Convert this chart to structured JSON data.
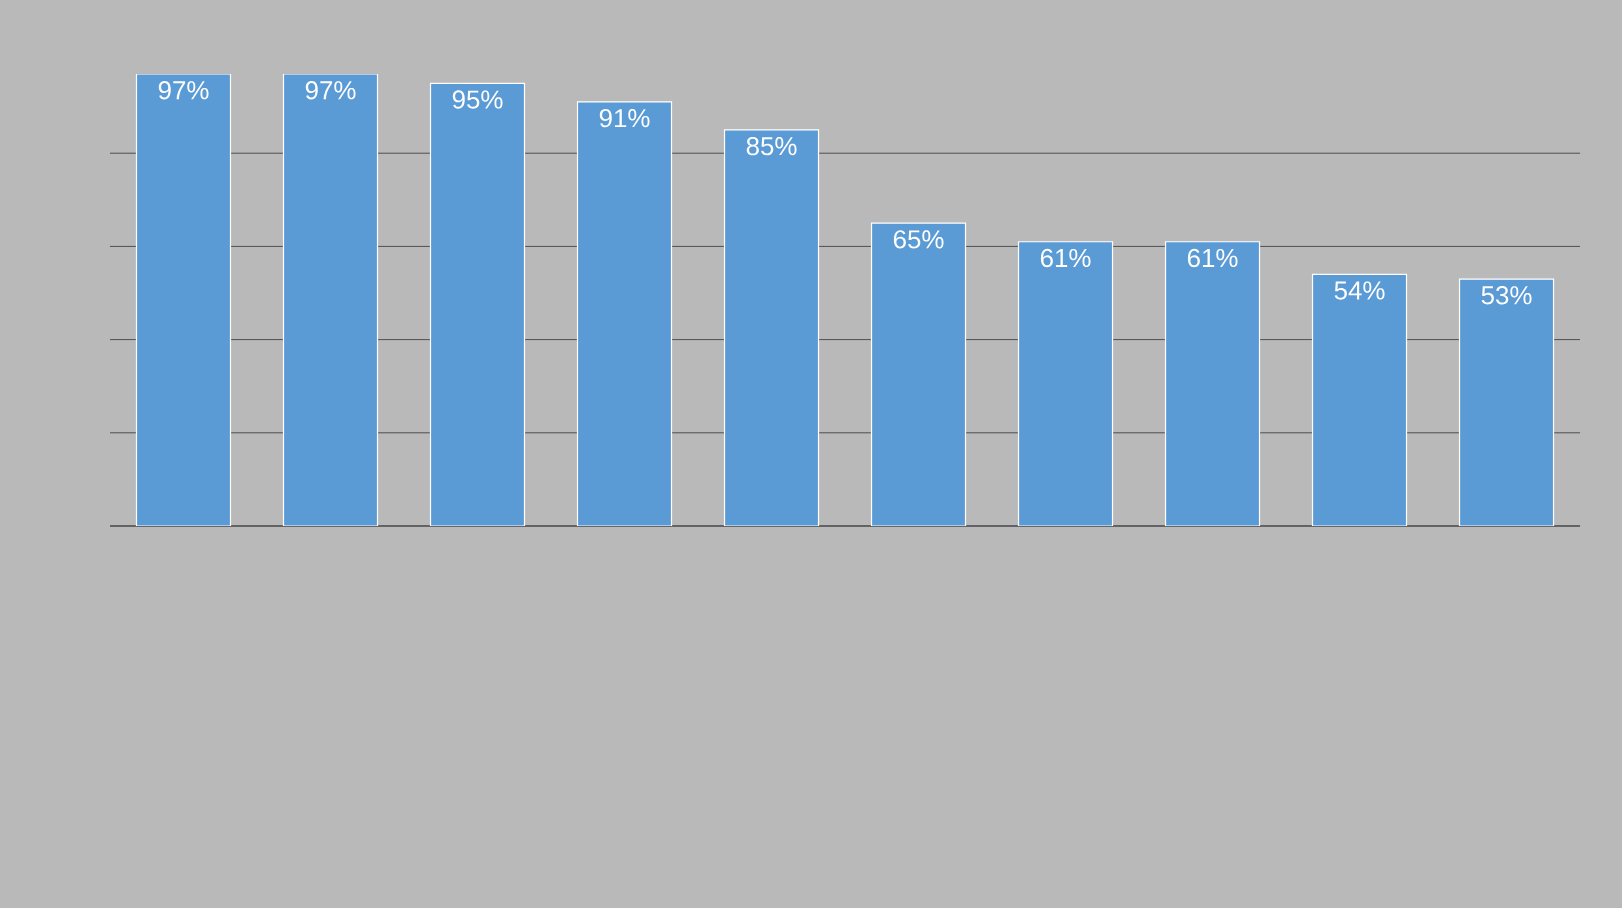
{
  "chart_data": {
    "type": "bar",
    "categories": [
      null,
      null,
      null,
      null,
      null,
      null,
      null,
      null,
      null,
      null
    ],
    "values": [
      97,
      97,
      95,
      91,
      85,
      65,
      61,
      61,
      54,
      53
    ],
    "value_labels": [
      "97%",
      "97%",
      "95%",
      "91%",
      "85%",
      "65%",
      "61%",
      "61%",
      "54%",
      "53%"
    ],
    "color": "#5b9bd5",
    "grid": "y"
  }
}
